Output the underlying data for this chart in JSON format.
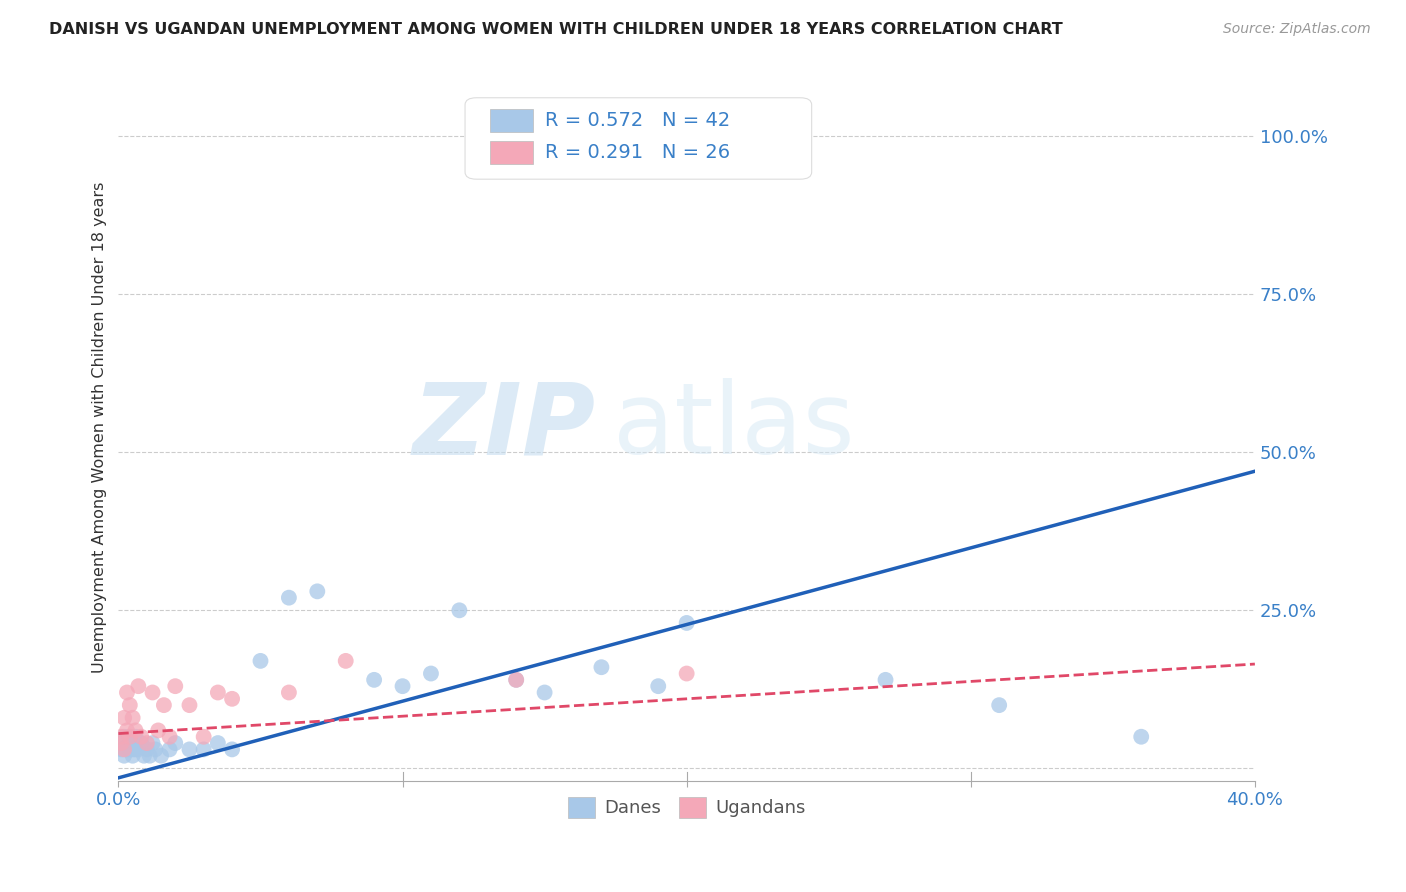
{
  "title": "DANISH VS UGANDAN UNEMPLOYMENT AMONG WOMEN WITH CHILDREN UNDER 18 YEARS CORRELATION CHART",
  "source": "Source: ZipAtlas.com",
  "ylabel": "Unemployment Among Women with Children Under 18 years",
  "watermark_zip": "ZIP",
  "watermark_atlas": "atlas",
  "xlim": [
    0.0,
    0.4
  ],
  "ylim": [
    -0.02,
    1.1
  ],
  "yticks": [
    0.0,
    0.25,
    0.5,
    0.75,
    1.0
  ],
  "ytick_labels": [
    "",
    "25.0%",
    "50.0%",
    "75.0%",
    "100.0%"
  ],
  "danes_R": 0.572,
  "danes_N": 42,
  "ugandans_R": 0.291,
  "ugandans_N": 26,
  "danes_color": "#a8c8e8",
  "ugandans_color": "#f4a8b8",
  "danes_line_color": "#2060b8",
  "ugandans_line_color": "#e04868",
  "background_color": "#ffffff",
  "danes_x": [
    0.001,
    0.001,
    0.002,
    0.002,
    0.003,
    0.003,
    0.004,
    0.004,
    0.005,
    0.005,
    0.005,
    0.006,
    0.006,
    0.007,
    0.008,
    0.009,
    0.01,
    0.011,
    0.012,
    0.013,
    0.015,
    0.018,
    0.02,
    0.025,
    0.03,
    0.035,
    0.04,
    0.05,
    0.06,
    0.07,
    0.09,
    0.1,
    0.11,
    0.12,
    0.14,
    0.15,
    0.17,
    0.19,
    0.2,
    0.27,
    0.31,
    0.36
  ],
  "danes_y": [
    0.03,
    0.04,
    0.02,
    0.05,
    0.03,
    0.04,
    0.03,
    0.05,
    0.02,
    0.03,
    0.04,
    0.03,
    0.05,
    0.03,
    0.04,
    0.02,
    0.03,
    0.02,
    0.04,
    0.03,
    0.02,
    0.03,
    0.04,
    0.03,
    0.03,
    0.04,
    0.03,
    0.17,
    0.27,
    0.28,
    0.14,
    0.13,
    0.15,
    0.25,
    0.14,
    0.12,
    0.16,
    0.13,
    0.23,
    0.14,
    0.1,
    0.05
  ],
  "ugandans_x": [
    0.001,
    0.001,
    0.002,
    0.002,
    0.003,
    0.003,
    0.004,
    0.004,
    0.005,
    0.006,
    0.007,
    0.008,
    0.01,
    0.012,
    0.014,
    0.016,
    0.018,
    0.02,
    0.025,
    0.03,
    0.035,
    0.04,
    0.06,
    0.08,
    0.14,
    0.2
  ],
  "ugandans_y": [
    0.04,
    0.05,
    0.03,
    0.08,
    0.06,
    0.12,
    0.05,
    0.1,
    0.08,
    0.06,
    0.13,
    0.05,
    0.04,
    0.12,
    0.06,
    0.1,
    0.05,
    0.13,
    0.1,
    0.05,
    0.12,
    0.11,
    0.12,
    0.17,
    0.14,
    0.15
  ],
  "blue_line_x0": 0.0,
  "blue_line_y0": -0.015,
  "blue_line_x1": 0.4,
  "blue_line_y1": 0.47,
  "pink_line_x0": 0.0,
  "pink_line_y0": 0.055,
  "pink_line_x1": 0.4,
  "pink_line_y1": 0.165
}
